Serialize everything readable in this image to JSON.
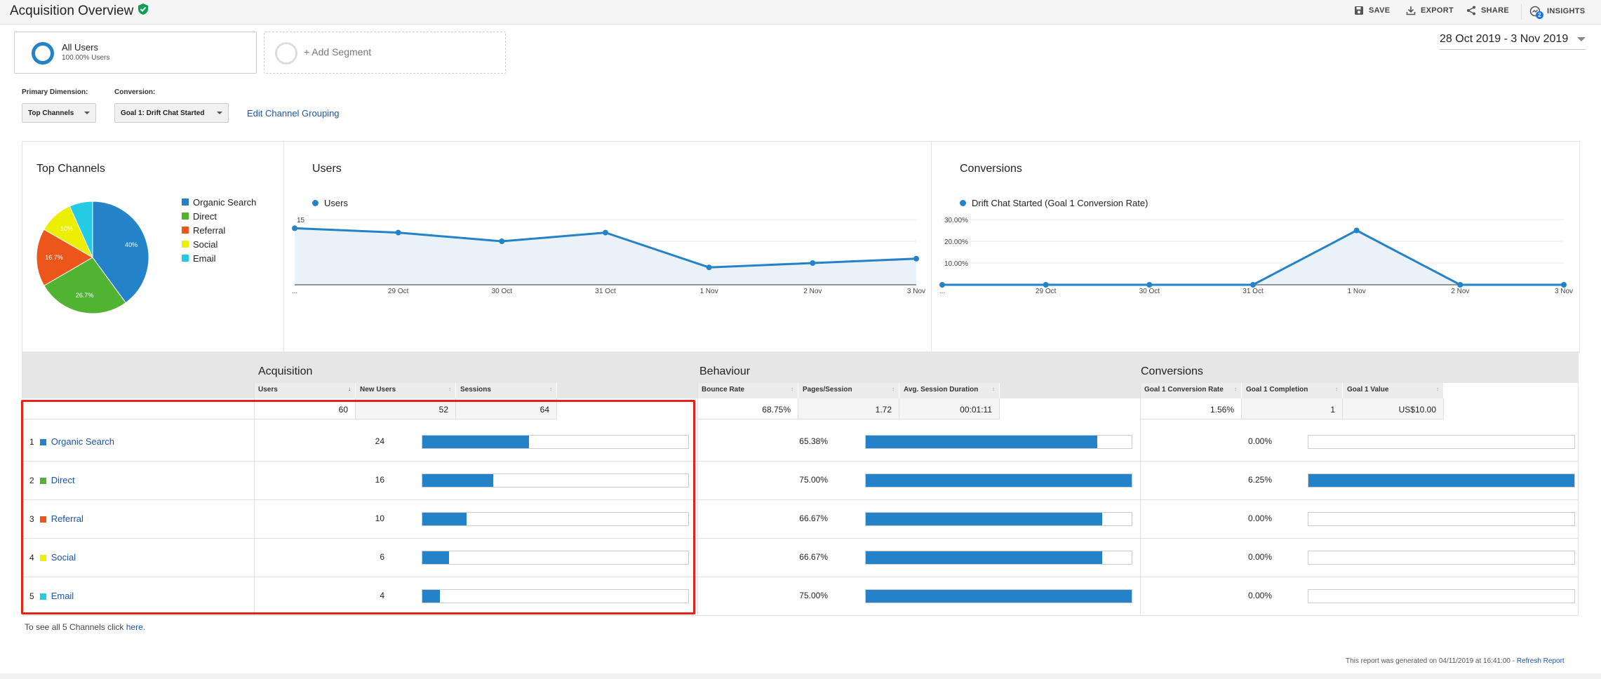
{
  "header": {
    "title": "Acquisition Overview",
    "save": "SAVE",
    "export": "EXPORT",
    "share": "SHARE",
    "insights": "INSIGHTS",
    "insights_badge": "2"
  },
  "segments": {
    "all_users_title": "All Users",
    "all_users_sub": "100.00% Users",
    "add_segment": "+ Add Segment"
  },
  "date_range": "28 Oct 2019 - 3 Nov 2019",
  "controls": {
    "primary_dimension_label": "Primary Dimension:",
    "primary_dimension_value": "Top Channels",
    "conversion_label": "Conversion:",
    "conversion_value": "Goal 1: Drift Chat Started",
    "edit_grouping": "Edit Channel Grouping"
  },
  "colors": {
    "organic": "#2482c8",
    "direct": "#50b432",
    "referral": "#ed561b",
    "social": "#edef00",
    "email": "#24cbe5"
  },
  "top_channels": {
    "title": "Top Channels",
    "legend": [
      "Organic Search",
      "Direct",
      "Referral",
      "Social",
      "Email"
    ],
    "pie_labels": [
      "40%",
      "26.7%",
      "16.7%",
      "10%",
      ""
    ]
  },
  "chart_data": [
    {
      "type": "pie",
      "title": "Top Channels",
      "categories": [
        "Organic Search",
        "Direct",
        "Referral",
        "Social",
        "Email"
      ],
      "values": [
        40,
        26.7,
        16.7,
        10,
        6.7
      ]
    },
    {
      "type": "area",
      "title": "Users",
      "x": [
        "...",
        "29 Oct",
        "30 Oct",
        "31 Oct",
        "1 Nov",
        "2 Nov",
        "3 Nov"
      ],
      "series": [
        {
          "name": "Users",
          "values": [
            13,
            12,
            10,
            12,
            4,
            5,
            6
          ]
        }
      ],
      "yticks": [
        "15",
        "10",
        "5"
      ],
      "ylim": [
        0,
        15
      ]
    },
    {
      "type": "area",
      "title": "Conversions",
      "x": [
        "...",
        "29 Oct",
        "30 Oct",
        "31 Oct",
        "1 Nov",
        "2 Nov",
        "3 Nov"
      ],
      "series": [
        {
          "name": "Drift Chat Started (Goal 1 Conversion Rate)",
          "values": [
            0,
            0,
            0,
            0,
            25,
            0,
            0
          ]
        }
      ],
      "yticks": [
        "30.00%",
        "20.00%",
        "10.00%"
      ],
      "ylim": [
        0,
        30
      ]
    }
  ],
  "table": {
    "groups": [
      "Acquisition",
      "Behaviour",
      "Conversions"
    ],
    "headers": [
      "Users",
      "New Users",
      "Sessions",
      "Bounce Rate",
      "Pages/Session",
      "Avg. Session Duration",
      "Goal 1 Conversion Rate",
      "Goal 1 Completion",
      "Goal 1 Value"
    ],
    "totals": [
      "60",
      "52",
      "64",
      "68.75%",
      "1.72",
      "00:01:11",
      "1.56%",
      "1",
      "US$10.00"
    ],
    "rows": [
      {
        "idx": "1",
        "name": "Organic Search",
        "users": "24",
        "users_frac": 0.4,
        "bounce": "65.38%",
        "bounce_frac": 0.87,
        "conv": "0.00%",
        "conv_frac": 0
      },
      {
        "idx": "2",
        "name": "Direct",
        "users": "16",
        "users_frac": 0.267,
        "bounce": "75.00%",
        "bounce_frac": 1.0,
        "conv": "6.25%",
        "conv_frac": 1.0
      },
      {
        "idx": "3",
        "name": "Referral",
        "users": "10",
        "users_frac": 0.167,
        "bounce": "66.67%",
        "bounce_frac": 0.889,
        "conv": "0.00%",
        "conv_frac": 0
      },
      {
        "idx": "4",
        "name": "Social",
        "users": "6",
        "users_frac": 0.1,
        "bounce": "66.67%",
        "bounce_frac": 0.889,
        "conv": "0.00%",
        "conv_frac": 0
      },
      {
        "idx": "5",
        "name": "Email",
        "users": "4",
        "users_frac": 0.067,
        "bounce": "75.00%",
        "bounce_frac": 1.0,
        "conv": "0.00%",
        "conv_frac": 0
      }
    ]
  },
  "see_all": {
    "text": "To see all 5 Channels click",
    "link": "here."
  },
  "footer": {
    "generated": "This report was generated on 04/11/2019 at 16:41:00 -",
    "refresh": "Refresh Report"
  }
}
